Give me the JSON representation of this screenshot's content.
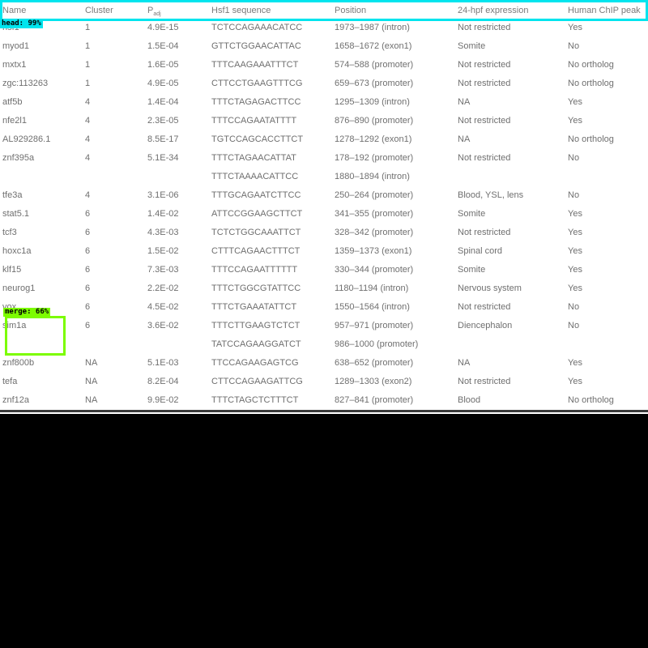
{
  "table": {
    "headers": [
      {
        "text": "Name",
        "sub": ""
      },
      {
        "text": "Cluster",
        "sub": ""
      },
      {
        "text": "P",
        "sub": "adj"
      },
      {
        "text": "Hsf1 sequence",
        "sub": ""
      },
      {
        "text": "Position",
        "sub": ""
      },
      {
        "text": "24-hpf expression",
        "sub": ""
      },
      {
        "text": "Human ChIP peak",
        "sub": ""
      }
    ],
    "rows": [
      [
        "hsf1",
        "1",
        "4.9E-15",
        "TCTCCAGAAACATCC",
        "1973–1987 (intron)",
        "Not restricted",
        "Yes"
      ],
      [
        "myod1",
        "1",
        "1.5E-04",
        "GTTCTGGAACATTAC",
        "1658–1672 (exon1)",
        "Somite",
        "No"
      ],
      [
        "mxtx1",
        "1",
        "1.6E-05",
        "TTTCAAGAAATTTCT",
        "574–588 (promoter)",
        "Not restricted",
        "No ortholog"
      ],
      [
        "zgc:113263",
        "1",
        "4.9E-05",
        "CTTCCTGAAGTTTCG",
        "659–673 (promoter)",
        "Not restricted",
        "No ortholog"
      ],
      [
        "atf5b",
        "4",
        "1.4E-04",
        "TTTCTAGAGACTTCC",
        "1295–1309 (intron)",
        "NA",
        "Yes"
      ],
      [
        "nfe2l1",
        "4",
        "2.3E-05",
        "TTTCCAGAATATTTT",
        "876–890 (promoter)",
        "Not restricted",
        "Yes"
      ],
      [
        "AL929286.1",
        "4",
        "8.5E-17",
        "TGTCCAGCACCTTCT",
        "1278–1292 (exon1)",
        "NA",
        "No ortholog"
      ],
      [
        "znf395a",
        "4",
        "5.1E-34",
        "TTTCTAGAACATTAT",
        "178–192 (promoter)",
        "Not restricted",
        "No"
      ],
      [
        "",
        "",
        "",
        "TTTCTAAAACATTCC",
        "1880–1894 (intron)",
        "",
        ""
      ],
      [
        "tfe3a",
        "4",
        "3.1E-06",
        "TTTGCAGAATCTTCC",
        "250–264 (promoter)",
        "Blood, YSL, lens",
        "No"
      ],
      [
        "stat5.1",
        "6",
        "1.4E-02",
        "ATTCCGGAAGCTTCT",
        "341–355 (promoter)",
        "Somite",
        "Yes"
      ],
      [
        "tcf3",
        "6",
        "4.3E-03",
        "TCTCTGGCAAATTCT",
        "328–342 (promoter)",
        "Not restricted",
        "Yes"
      ],
      [
        "hoxc1a",
        "6",
        "1.5E-02",
        "CTTTCAGAACTTTCT",
        "1359–1373 (exon1)",
        "Spinal cord",
        "Yes"
      ],
      [
        "klf15",
        "6",
        "7.3E-03",
        "TTTCCAGAATTTTTT",
        "330–344 (promoter)",
        "Somite",
        "Yes"
      ],
      [
        "neurog1",
        "6",
        "2.2E-02",
        "TTTCTGGCGTATTCC",
        "1180–1194 (intron)",
        "Nervous system",
        "Yes"
      ],
      [
        "vox",
        "6",
        "4.5E-02",
        "TTTCTGAAATATTCT",
        "1550–1564 (intron)",
        "Not restricted",
        "No"
      ],
      [
        "sim1a",
        "6",
        "3.6E-02",
        "TTTCTTGAAGTCTCT",
        "957–971 (promoter)",
        "Diencephalon",
        "No"
      ],
      [
        "",
        "",
        "",
        "TATCCAGAAGGATCT",
        "986–1000 (promoter)",
        "",
        ""
      ],
      [
        "znf800b",
        "NA",
        "5.1E-03",
        "TTCCAGAAGAGTCG",
        "638–652 (promoter)",
        "NA",
        "Yes"
      ],
      [
        "tefa",
        "NA",
        "8.2E-04",
        "CTTCCAGAAGATTCG",
        "1289–1303 (exon2)",
        "Not restricted",
        "Yes"
      ],
      [
        "znf12a",
        "NA",
        "9.9E-02",
        "TTTCTAGCTCTTTCT",
        "827–841 (promoter)",
        "Blood",
        "No ortholog"
      ]
    ]
  },
  "detections": [
    {
      "label": "head: 99%",
      "color": "#00e5ee"
    },
    {
      "label": "merge: 66%",
      "color": "#7cfc00"
    }
  ]
}
